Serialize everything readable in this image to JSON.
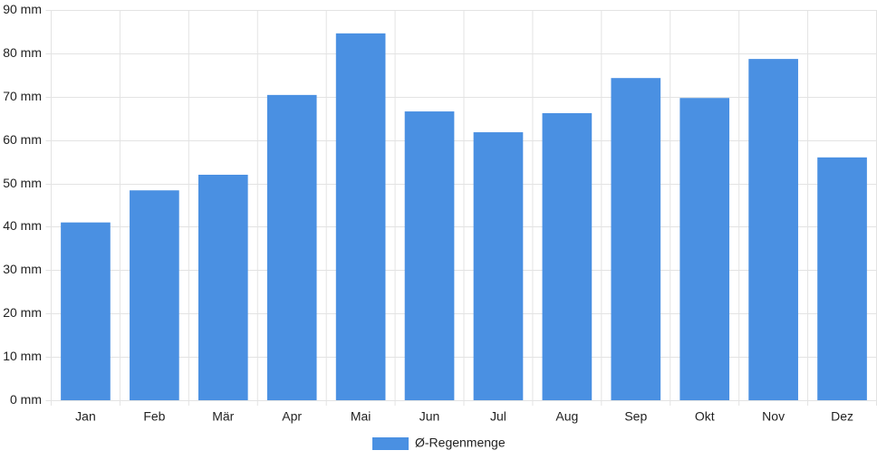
{
  "chart_data": {
    "type": "bar",
    "categories": [
      "Jan",
      "Feb",
      "Mär",
      "Apr",
      "Mai",
      "Jun",
      "Jul",
      "Aug",
      "Sep",
      "Okt",
      "Nov",
      "Dez"
    ],
    "series": [
      {
        "name": "Ø-Regenmenge",
        "color": "#4a90e2",
        "values": [
          41,
          48.4,
          52,
          70.4,
          84.6,
          66.6,
          61.8,
          66.2,
          74.3,
          69.7,
          78.7,
          56
        ]
      }
    ],
    "ylim": [
      0,
      90
    ],
    "yticks": [
      {
        "value": 0,
        "label": "0 mm"
      },
      {
        "value": 10,
        "label": "10 mm"
      },
      {
        "value": 20,
        "label": "20 mm"
      },
      {
        "value": 30,
        "label": "30 mm"
      },
      {
        "value": 40,
        "label": "40 mm"
      },
      {
        "value": 50,
        "label": "50 mm"
      },
      {
        "value": 60,
        "label": "60 mm"
      },
      {
        "value": 70,
        "label": "70 mm"
      },
      {
        "value": 80,
        "label": "80 mm"
      },
      {
        "value": 90,
        "label": "90 mm"
      }
    ],
    "grid": true,
    "legend": "bottom"
  }
}
